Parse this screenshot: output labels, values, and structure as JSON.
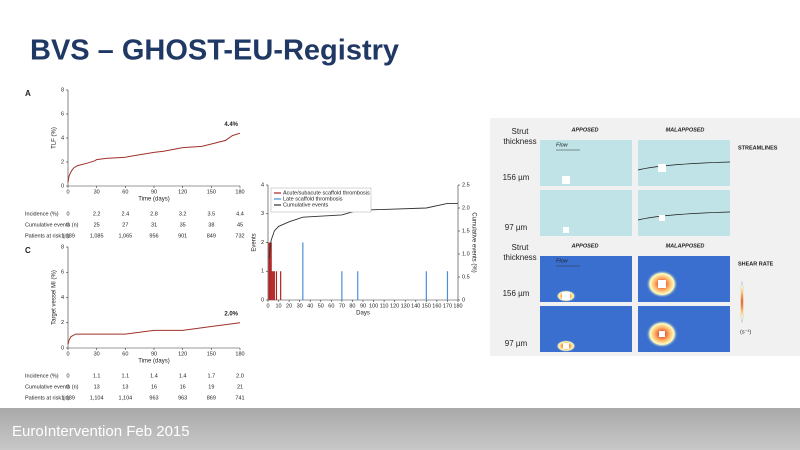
{
  "header": {
    "title": "BVS – GHOST-EU-Registry"
  },
  "footer": {
    "text": "EuroIntervention Feb 2015"
  },
  "chart_data": [
    {
      "type": "line",
      "panel": "A",
      "y_label": "TLF (%)",
      "x_label": "Time (days)",
      "annotation": "4.4%",
      "xlim": [
        0,
        180
      ],
      "ylim": [
        0,
        8
      ],
      "xticks": [
        0,
        30,
        60,
        90,
        120,
        150,
        180
      ],
      "yticks": [
        0,
        2,
        4,
        6,
        8
      ],
      "color": "#a0302a",
      "x": [
        0,
        1,
        2,
        4,
        6,
        10,
        20,
        28,
        30,
        40,
        60,
        75,
        90,
        100,
        120,
        140,
        150,
        165,
        172,
        180
      ],
      "values": [
        0.3,
        0.8,
        1.0,
        1.3,
        1.5,
        1.7,
        1.9,
        2.1,
        2.2,
        2.3,
        2.4,
        2.6,
        2.8,
        2.9,
        3.2,
        3.3,
        3.5,
        3.8,
        4.2,
        4.4
      ]
    },
    {
      "type": "line",
      "panel": "C",
      "y_label": "Target vessel MI (%)",
      "x_label": "Time (days)",
      "annotation": "2.0%",
      "xlim": [
        0,
        180
      ],
      "ylim": [
        0,
        8
      ],
      "xticks": [
        0,
        30,
        60,
        90,
        120,
        150,
        180
      ],
      "yticks": [
        0,
        2,
        4,
        6,
        8
      ],
      "color": "#a0302a",
      "x": [
        0,
        1,
        3,
        8,
        30,
        60,
        90,
        120,
        150,
        170,
        180
      ],
      "values": [
        0.3,
        0.6,
        0.9,
        1.1,
        1.1,
        1.1,
        1.4,
        1.4,
        1.7,
        1.9,
        2.0
      ]
    },
    {
      "type": "combo",
      "y_label": "Events",
      "y2_label": "Cumulative events (%)",
      "x_label": "Days",
      "legend": "top-left",
      "xlim": [
        0,
        180
      ],
      "ylim": [
        0,
        4
      ],
      "y2lim": [
        0,
        2.5
      ],
      "xticks": [
        0,
        10,
        20,
        30,
        40,
        50,
        60,
        70,
        80,
        90,
        100,
        110,
        120,
        130,
        140,
        150,
        160,
        170,
        180
      ],
      "yticks": [
        0,
        1,
        2,
        3,
        4
      ],
      "y2ticks": [
        0,
        0.5,
        {
          "value": 1,
          "label": "1.0"
        },
        1.5,
        {
          "value": 2,
          "label": "2.0"
        },
        2.5
      ],
      "series": [
        {
          "name": "Acute/subacute scaffold thrombosis",
          "color": "#b22222",
          "type": "bar",
          "x": [
            1,
            2,
            3,
            4,
            5,
            6,
            8,
            12
          ],
          "values": [
            2,
            2,
            2,
            1,
            1,
            1,
            1,
            1
          ]
        },
        {
          "name": "Late scaffold thrombosis",
          "color": "#4a90d9",
          "type": "bar",
          "x": [
            33,
            70,
            85,
            150,
            170
          ],
          "values": [
            2,
            1,
            1,
            1,
            1
          ]
        },
        {
          "name": "Cumulative events",
          "color": "#333333",
          "type": "line",
          "axis": "y2",
          "x": [
            1,
            3,
            6,
            10,
            20,
            33,
            70,
            85,
            150,
            170,
            180
          ],
          "values": [
            0.9,
            1.3,
            1.5,
            1.6,
            1.7,
            1.8,
            1.85,
            1.95,
            2.0,
            2.1,
            2.1
          ]
        }
      ]
    }
  ],
  "tables": [
    {
      "row_labels": [
        "Incidence (%)",
        "Cumulative events (n)",
        "Patients at risk (n)"
      ],
      "rows": [
        [
          "0",
          "2.2",
          "2.4",
          "2.8",
          "3.2",
          "3.5",
          "4.4"
        ],
        [
          "0",
          "25",
          "27",
          "31",
          "35",
          "38",
          "45"
        ],
        [
          "1,189",
          "1,085",
          "1,065",
          "956",
          "901",
          "849",
          "732"
        ]
      ]
    },
    {
      "row_labels": [
        "Incidence (%)",
        "Cumulative events (n)",
        "Patients at risk (n)"
      ],
      "rows": [
        [
          "0",
          "1.1",
          "1.1",
          "1.4",
          "1.4",
          "1.7",
          "2.0"
        ],
        [
          "0",
          "13",
          "13",
          "16",
          "16",
          "19",
          "21"
        ],
        [
          "1,189",
          "1,104",
          "1,104",
          "963",
          "963",
          "869",
          "741"
        ]
      ]
    }
  ],
  "simulation": {
    "panels": [
      {
        "header_lines": [
          "Strut",
          "thickness"
        ],
        "columns": [
          "APPOSED",
          "MALAPPOSED"
        ],
        "title": "STREAMLINES",
        "rows": [
          "156 µm",
          "97 µm"
        ],
        "flow": "Flow"
      },
      {
        "header_lines": [
          "Strut",
          "thickness"
        ],
        "columns": [
          "APPOSED",
          "MALAPPOSED"
        ],
        "title": "SHEAR RATE",
        "rows": [
          "156 µm",
          "97 µm"
        ],
        "flow": "Flow",
        "unit": "(s⁻¹)"
      }
    ]
  }
}
